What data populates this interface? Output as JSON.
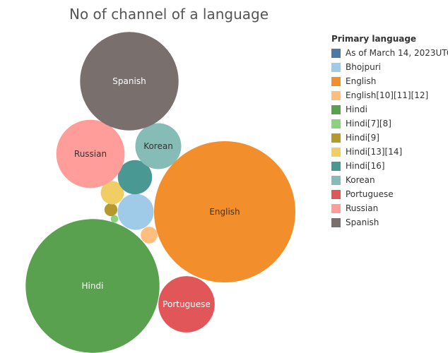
{
  "chart_data": {
    "type": "bubble",
    "title": "No of channel of a language",
    "legend": {
      "title": "Primary language",
      "position": "right"
    },
    "series": [
      {
        "name": "As of March 14, 2023UTC",
        "value": 0,
        "color": "#4e79a7",
        "label": ""
      },
      {
        "name": "Bhojpuri",
        "value": 7,
        "color": "#a0cbe8",
        "label": ""
      },
      {
        "name": "English",
        "value": 107,
        "color": "#f28e2b",
        "label": "English"
      },
      {
        "name": "English[10][11][12]",
        "value": 1.5,
        "color": "#ffbe7d",
        "label": ""
      },
      {
        "name": "Hindi",
        "value": 96,
        "color": "#59a14f",
        "label": "Hindi"
      },
      {
        "name": "Hindi[7][8]",
        "value": 0.3,
        "color": "#8cd17d",
        "label": ""
      },
      {
        "name": "Hindi[9]",
        "value": 0.9,
        "color": "#b6992d",
        "label": ""
      },
      {
        "name": "Hindi[13][14]",
        "value": 2.9,
        "color": "#f1ce63",
        "label": ""
      },
      {
        "name": "Hindi[16]",
        "value": 6.3,
        "color": "#499894",
        "label": ""
      },
      {
        "name": "Korean",
        "value": 11.3,
        "color": "#86bcb6",
        "label": "Korean"
      },
      {
        "name": "Portuguese",
        "value": 17,
        "color": "#e15759",
        "label": "Portuguese"
      },
      {
        "name": "Russian",
        "value": 25,
        "color": "#ff9d9a",
        "label": "Russian"
      },
      {
        "name": "Spanish",
        "value": 52,
        "color": "#79706e",
        "label": "Spanish"
      }
    ]
  }
}
